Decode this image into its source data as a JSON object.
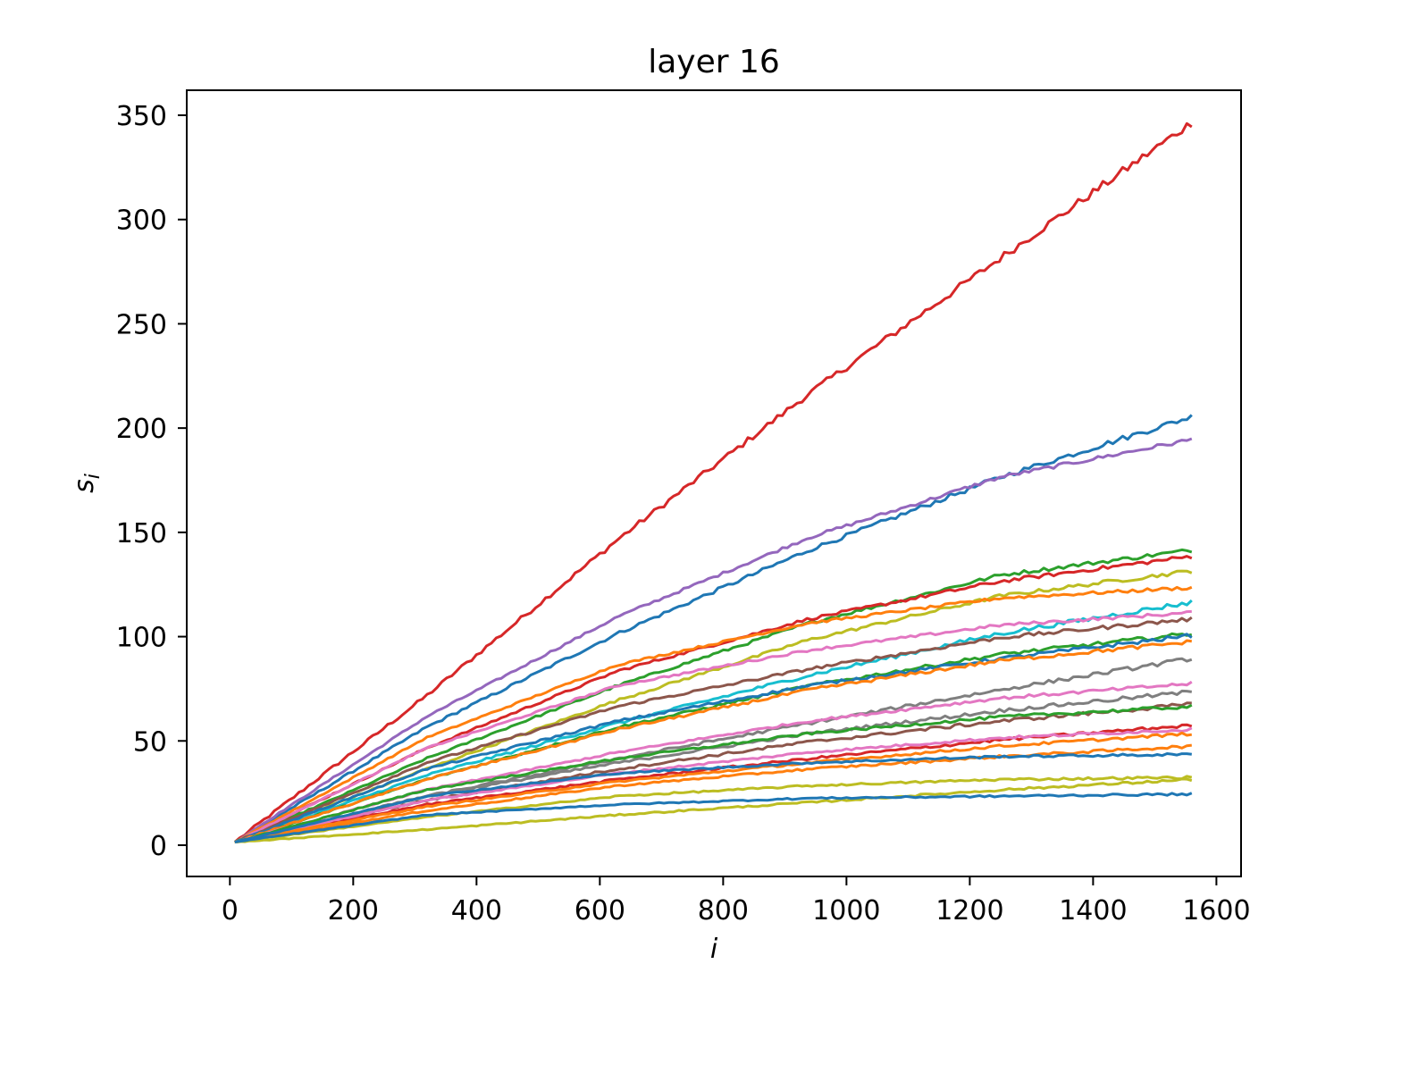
{
  "chart_data": {
    "type": "line",
    "title": "layer 16",
    "xlabel": "i",
    "ylabel": "s",
    "ylabel_subscript": "i",
    "xlim": [
      -70,
      1640
    ],
    "ylim": [
      -15,
      362
    ],
    "xticks": [
      0,
      200,
      400,
      600,
      800,
      1000,
      1200,
      1400,
      1600
    ],
    "yticks": [
      0,
      50,
      100,
      150,
      200,
      250,
      300,
      350
    ],
    "grid": false,
    "legend": "none",
    "x_start": 8,
    "x_end": 1560,
    "x_step": 8,
    "series": [
      {
        "color": "#d62728",
        "values": [
          0,
          70,
          145,
          215,
          280,
          345
        ],
        "noise": 2.2
      },
      {
        "color": "#1f77b4",
        "values": [
          0,
          55,
          100,
          140,
          175,
          204
        ],
        "noise": 1.4
      },
      {
        "color": "#9467bd",
        "values": [
          0,
          60,
          108,
          146,
          175,
          193
        ],
        "noise": 1.0
      },
      {
        "color": "#2ca02c",
        "values": [
          0,
          40,
          75,
          105,
          128,
          140
        ],
        "noise": 1.0
      },
      {
        "color": "#d62728",
        "values": [
          0,
          45,
          82,
          107,
          125,
          137
        ],
        "noise": 1.0
      },
      {
        "color": "#bcbd22",
        "values": [
          0,
          35,
          68,
          97,
          118,
          130
        ],
        "noise": 1.0
      },
      {
        "color": "#ff7f0e",
        "values": [
          0,
          50,
          85,
          105,
          117,
          122
        ],
        "noise": 0.8
      },
      {
        "color": "#17becf",
        "values": [
          0,
          32,
          57,
          80,
          100,
          115
        ],
        "noise": 1.2
      },
      {
        "color": "#e377c2",
        "values": [
          0,
          45,
          75,
          92,
          104,
          110
        ],
        "noise": 0.8
      },
      {
        "color": "#8c564b",
        "values": [
          0,
          38,
          65,
          83,
          98,
          107
        ],
        "noise": 1.0
      },
      {
        "color": "#2ca02c",
        "values": [
          0,
          30,
          55,
          75,
          90,
          100
        ],
        "noise": 1.0
      },
      {
        "color": "#1f77b4",
        "values": [
          0,
          35,
          58,
          75,
          88,
          99
        ],
        "noise": 1.0
      },
      {
        "color": "#ff7f0e",
        "values": [
          0,
          30,
          54,
          73,
          87,
          96
        ],
        "noise": 1.0
      },
      {
        "color": "#7f7f7f",
        "values": [
          0,
          22,
          40,
          57,
          73,
          88
        ],
        "noise": 1.0
      },
      {
        "color": "#e377c2",
        "values": [
          0,
          25,
          43,
          58,
          69,
          76
        ],
        "noise": 0.8
      },
      {
        "color": "#7f7f7f",
        "values": [
          0,
          22,
          38,
          52,
          63,
          72
        ],
        "noise": 1.0
      },
      {
        "color": "#8c564b",
        "values": [
          0,
          20,
          35,
          48,
          58,
          66
        ],
        "noise": 1.0
      },
      {
        "color": "#2ca02c",
        "values": [
          0,
          25,
          40,
          52,
          60,
          65
        ],
        "noise": 0.8
      },
      {
        "color": "#d62728",
        "values": [
          0,
          18,
          30,
          40,
          49,
          56
        ],
        "noise": 0.8
      },
      {
        "color": "#e377c2",
        "values": [
          0,
          20,
          33,
          43,
          50,
          54
        ],
        "noise": 0.7
      },
      {
        "color": "#ff7f0e",
        "values": [
          0,
          17,
          29,
          38,
          46,
          52
        ],
        "noise": 0.7
      },
      {
        "color": "#ff7f0e",
        "values": [
          0,
          15,
          27,
          35,
          41,
          46
        ],
        "noise": 0.7
      },
      {
        "color": "#1f77b4",
        "values": [
          0,
          22,
          33,
          38,
          41,
          42
        ],
        "noise": 0.6
      },
      {
        "color": "#bcbd22",
        "values": [
          0,
          12,
          22,
          27,
          30,
          31
        ],
        "noise": 0.6
      },
      {
        "color": "#bcbd22",
        "values": [
          0,
          6,
          13,
          19,
          25,
          30
        ],
        "noise": 0.6
      },
      {
        "color": "#1f77b4",
        "values": [
          0,
          13,
          18,
          21,
          22,
          23
        ],
        "noise": 0.5
      }
    ]
  }
}
